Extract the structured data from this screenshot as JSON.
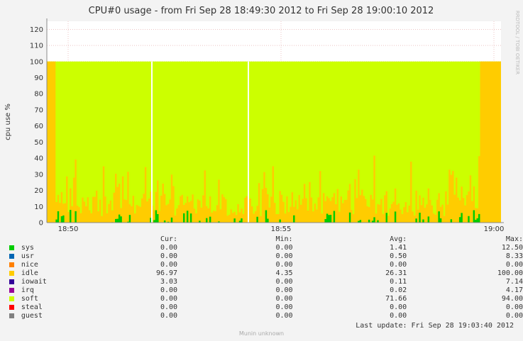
{
  "chart_data": {
    "type": "area",
    "title": "CPU#0 usage - from Fri Sep 28 18:49:30 2012 to Fri Sep 28 19:00:10 2012",
    "ylabel": "cpu use %",
    "watermark": "RRDTOOL / TOBI OETIKER",
    "credit": "Munin unknown",
    "ylim": [
      0,
      125
    ],
    "xlim": [
      "18:49:30",
      "19:00:10"
    ],
    "y_ticks": [
      0,
      10,
      20,
      30,
      40,
      50,
      60,
      70,
      80,
      90,
      100,
      110,
      120
    ],
    "x_ticks": [
      "18:50",
      "18:55",
      "19:00"
    ],
    "grid": true,
    "stacked": true,
    "legend_headers": [
      "Cur:",
      "Min:",
      "Avg:",
      "Max:"
    ],
    "series": [
      {
        "name": "sys",
        "color": "#00cc00",
        "cur": "0.00",
        "min": "0.00",
        "avg": "1.41",
        "max": "12.50"
      },
      {
        "name": "usr",
        "color": "#0066b3",
        "cur": "0.00",
        "min": "0.00",
        "avg": "0.50",
        "max": "8.33"
      },
      {
        "name": "nice",
        "color": "#ff8000",
        "cur": "0.00",
        "min": "0.00",
        "avg": "0.00",
        "max": "0.00"
      },
      {
        "name": "idle",
        "color": "#ffcc00",
        "cur": "96.97",
        "min": "4.35",
        "avg": "26.31",
        "max": "100.00"
      },
      {
        "name": "iowait",
        "color": "#330099",
        "cur": "3.03",
        "min": "0.00",
        "avg": "0.11",
        "max": "7.14"
      },
      {
        "name": "irq",
        "color": "#990099",
        "cur": "0.00",
        "min": "0.00",
        "avg": "0.02",
        "max": "4.17"
      },
      {
        "name": "soft",
        "color": "#ccff00",
        "cur": "0.00",
        "min": "0.00",
        "avg": "71.66",
        "max": "94.00"
      },
      {
        "name": "steal",
        "color": "#ff0000",
        "cur": "0.00",
        "min": "0.00",
        "avg": "0.00",
        "max": "0.00"
      },
      {
        "name": "guest",
        "color": "#808080",
        "cur": "0.00",
        "min": "0.00",
        "avg": "0.00",
        "max": "0.00"
      }
    ]
  },
  "last_update": "Last update:  Fri Sep 28 19:03:40 2012"
}
